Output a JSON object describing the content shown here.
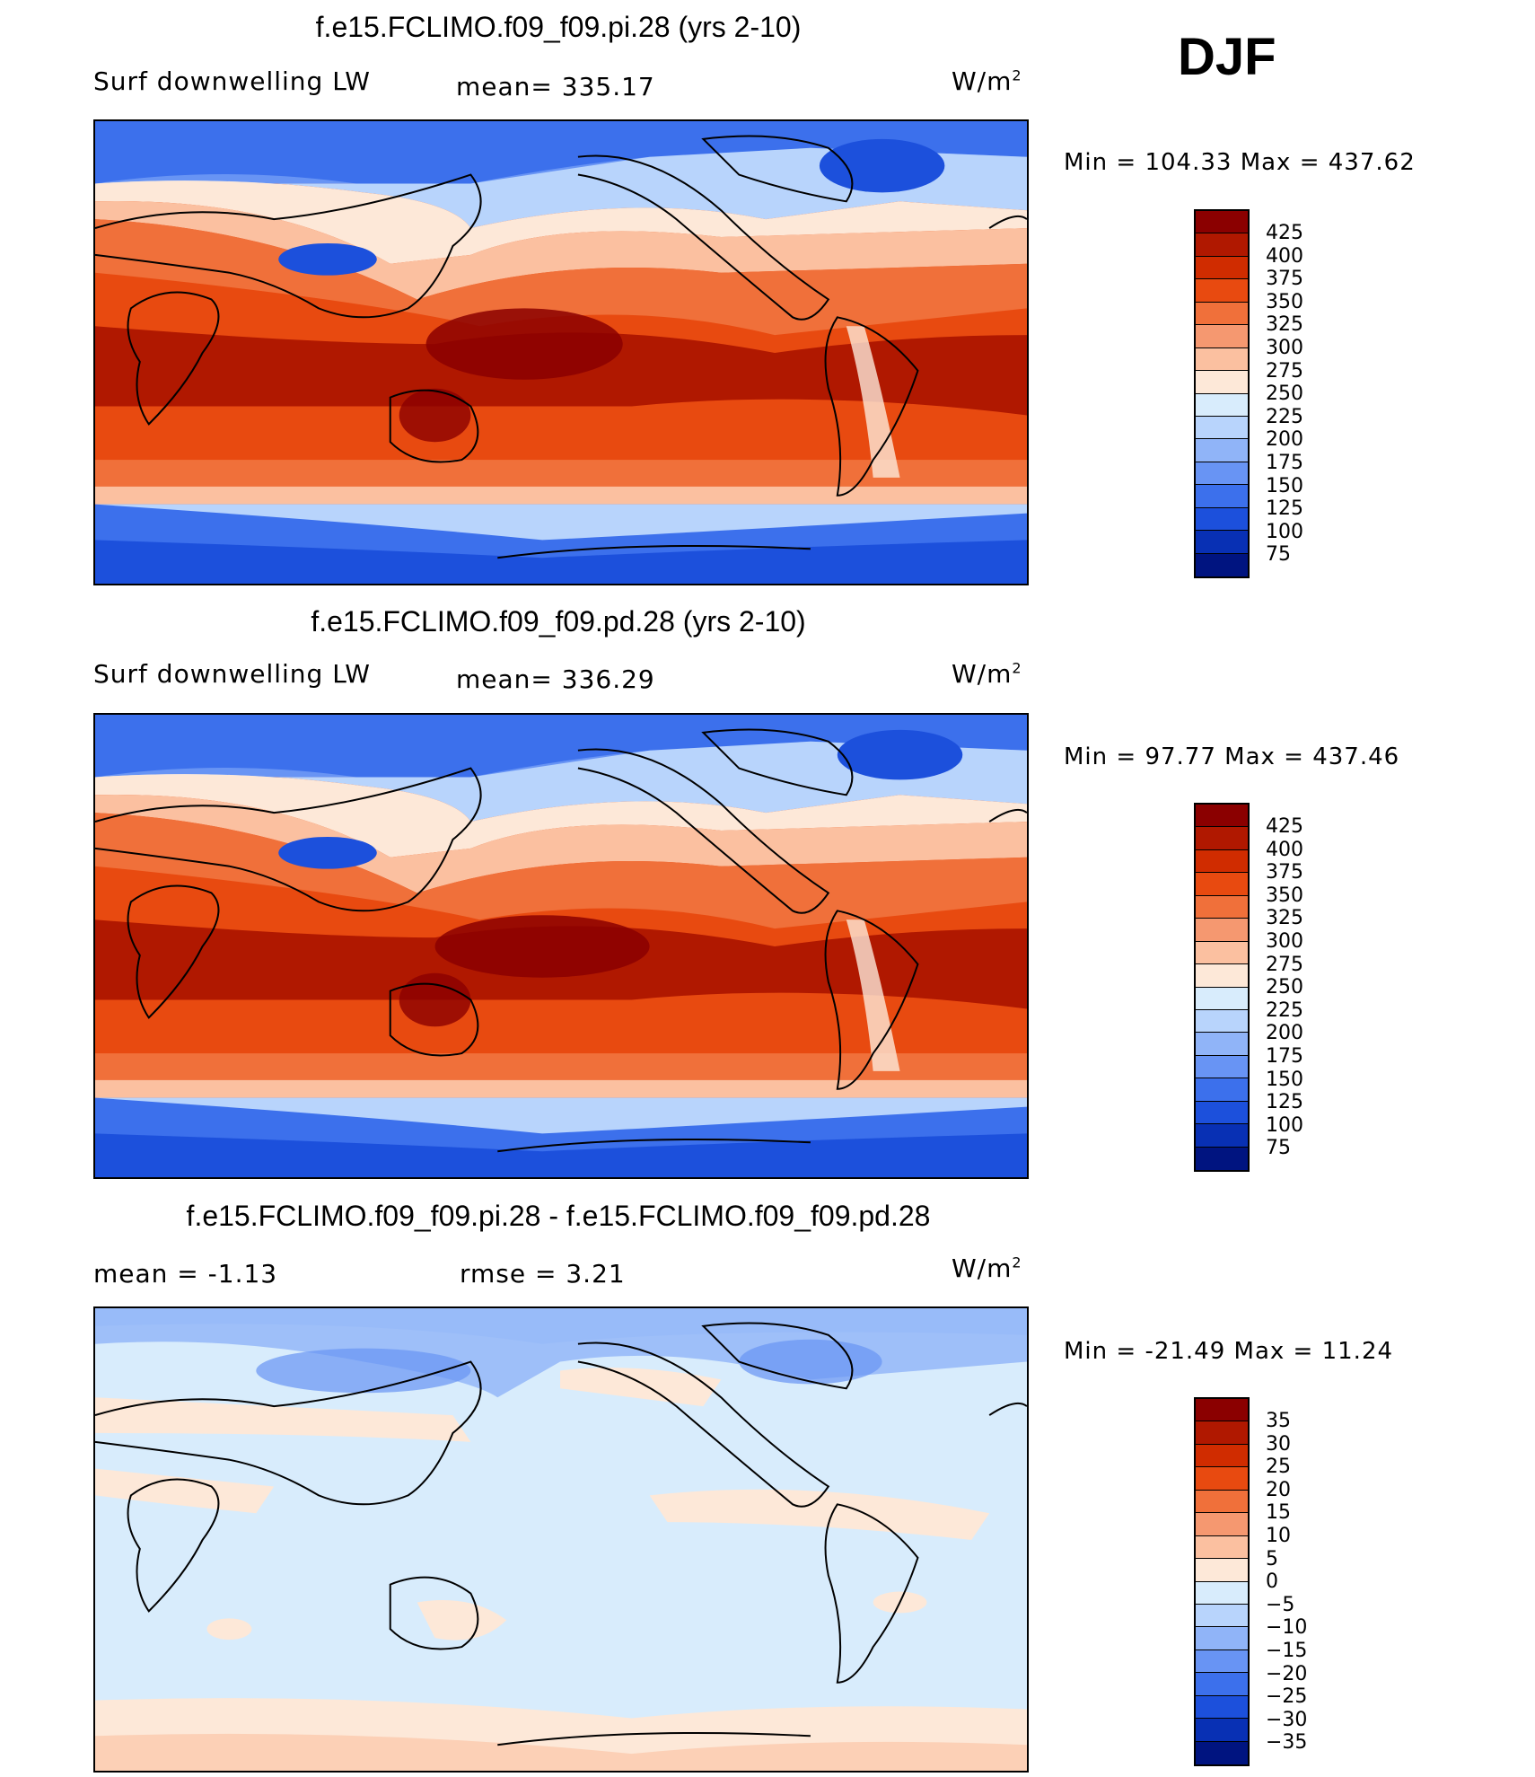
{
  "season": "DJF",
  "units_label": "W/m",
  "units_exp": "2",
  "panel1": {
    "title": "f.e15.FCLIMO.f09_f09.pi.28 (yrs 2-10)",
    "variable": "Surf downwelling LW",
    "mean": "mean= 335.17",
    "min_max": "Min = 104.33 Max = 437.62"
  },
  "panel2": {
    "title": "f.e15.FCLIMO.f09_f09.pd.28 (yrs 2-10)",
    "variable": "Surf downwelling LW",
    "mean": "mean= 336.29",
    "min_max": "Min = 97.77 Max = 437.46"
  },
  "panel3": {
    "title": "f.e15.FCLIMO.f09_f09.pi.28 - f.e15.FCLIMO.f09_f09.pd.28",
    "mean": "mean = -1.13",
    "rmse": "rmse = 3.21",
    "min_max": "Min = -21.49 Max = 11.24"
  },
  "colorbar_abs": {
    "labels": [
      "425",
      "400",
      "375",
      "350",
      "325",
      "300",
      "275",
      "250",
      "225",
      "200",
      "175",
      "150",
      "125",
      "100",
      "75"
    ],
    "colors": [
      "#8b0000",
      "#b01800",
      "#d02c00",
      "#e84a10",
      "#f0703a",
      "#f59870",
      "#fbc0a0",
      "#fde8d8",
      "#d8ecfc",
      "#b8d4fc",
      "#90b4f8",
      "#6894f4",
      "#3c70ec",
      "#1c50dc",
      "#0830b4",
      "#001480"
    ]
  },
  "colorbar_diff": {
    "labels": [
      "35",
      "30",
      "25",
      "20",
      "15",
      "10",
      "5",
      "0",
      "−5",
      "−10",
      "−15",
      "−20",
      "−25",
      "−30",
      "−35"
    ],
    "colors": [
      "#8b0000",
      "#b01800",
      "#d02c00",
      "#e84a10",
      "#f0703a",
      "#f59870",
      "#fbc0a0",
      "#fde8d8",
      "#d8ecfc",
      "#b8d4fc",
      "#90b4f8",
      "#6894f4",
      "#3c70ec",
      "#1c50dc",
      "#0830b4",
      "#001480"
    ]
  }
}
